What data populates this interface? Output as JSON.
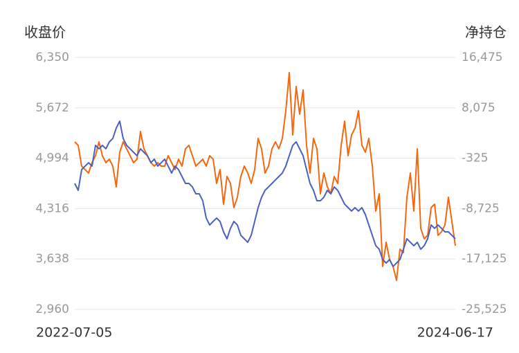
{
  "chart_data": {
    "type": "line",
    "ylabel": "收盘价",
    "y2label": "净持仓",
    "categories": [
      "2022-07-05",
      null,
      null,
      null,
      null,
      null,
      null,
      null,
      null,
      null,
      null,
      null,
      null,
      null,
      null,
      null,
      null,
      null,
      null,
      null,
      null,
      null,
      null,
      null,
      null,
      null,
      null,
      null,
      null,
      null,
      null,
      null,
      null,
      null,
      null,
      null,
      null,
      null,
      null,
      null,
      null,
      null,
      null,
      null,
      null,
      null,
      null,
      null,
      null,
      null,
      null,
      null,
      null,
      null,
      null,
      null,
      null,
      null,
      null,
      null,
      null,
      null,
      null,
      null,
      null,
      null,
      null,
      null,
      null,
      null,
      null,
      null,
      null,
      null,
      null,
      null,
      null,
      null,
      null,
      null,
      null,
      null,
      null,
      null,
      null,
      null,
      null,
      null,
      null,
      null,
      null,
      null,
      null,
      null,
      null,
      null,
      null,
      null,
      null,
      null,
      null,
      null,
      null,
      null,
      null,
      null,
      null,
      null,
      null,
      null,
      "2024-06-17"
    ],
    "ylim": [
      2960,
      6350
    ],
    "yticks": [
      {
        "value": 2960,
        "label": "2,960"
      },
      {
        "value": 3638,
        "label": "3,638"
      },
      {
        "value": 4316,
        "label": "4,316"
      },
      {
        "value": 4994,
        "label": "4,994"
      },
      {
        "value": 5672,
        "label": "5,672"
      },
      {
        "value": 6350,
        "label": "6,350"
      }
    ],
    "y2lim": [
      -25525,
      16475
    ],
    "y2ticks": [
      {
        "value": -25525,
        "label": "-25,525"
      },
      {
        "value": -17125,
        "label": "-17,125"
      },
      {
        "value": -8725,
        "label": "-8,725"
      },
      -325,
      {
        "value": 8075,
        "label": "8,075"
      },
      {
        "value": 16475,
        "label": "16,475"
      }
    ],
    "grid": true,
    "series": [
      {
        "color": "#4a5fc1",
        "axis": "y",
        "values": [
          4655,
          4562,
          4841,
          4888,
          4934,
          4888,
          5167,
          5121,
          5167,
          5121,
          5214,
          5260,
          5400,
          5493,
          5260,
          5167,
          5121,
          5074,
          5028,
          5121,
          5074,
          5028,
          4934,
          4981,
          4888,
          4934,
          4981,
          4888,
          4795,
          4888,
          4841,
          4748,
          4655,
          4655,
          4608,
          4515,
          4515,
          4422,
          4189,
          4096,
          4143,
          4189,
          4143,
          4003,
          3910,
          4050,
          4143,
          4096,
          3957,
          3910,
          3863,
          3957,
          4143,
          4329,
          4469,
          4562,
          4608,
          4655,
          4702,
          4748,
          4795,
          4888,
          5028,
          5167,
          5214,
          5121,
          5028,
          4841,
          4655,
          4562,
          4422,
          4422,
          4469,
          4562,
          4515,
          4608,
          4562,
          4469,
          4376,
          4329,
          4283,
          4329,
          4283,
          4329,
          4236,
          4096,
          3957,
          3817,
          3770,
          3631,
          3584,
          3631,
          3537,
          3584,
          3631,
          3770,
          3910,
          3863,
          3817,
          3863,
          3770,
          3817,
          3910,
          4096,
          4050,
          4096,
          4050,
          4003,
          4003,
          3957,
          3910
        ]
      },
      {
        "color": "#f5670f",
        "axis": "y2",
        "values": [
          2399,
          1822,
          -1640,
          -2217,
          -2793,
          -1063,
          91,
          2399,
          91,
          -1063,
          -486,
          -1640,
          -5101,
          668,
          2399,
          1245,
          91,
          -1063,
          -486,
          4129,
          1245,
          91,
          -1063,
          -1640,
          -1063,
          -1640,
          -1640,
          91,
          -1063,
          -2217,
          -486,
          -1640,
          1245,
          1822,
          91,
          -1640,
          -1063,
          -486,
          -1640,
          91,
          -486,
          -4524,
          -2217,
          -7986,
          -3370,
          -4524,
          -8562,
          -6832,
          -3370,
          -1640,
          -2793,
          -4524,
          -2217,
          2976,
          1245,
          -2793,
          -1640,
          1245,
          2399,
          1245,
          2976,
          7591,
          13937,
          3552,
          11629,
          7014,
          11052,
          1822,
          -2793,
          2976,
          1245,
          -6255,
          -2793,
          -5101,
          -6255,
          -3370,
          -4524,
          1822,
          5860,
          91,
          3552,
          4706,
          7591,
          1822,
          668,
          2976,
          -1640,
          -9139,
          -6255,
          -18370,
          -14331,
          -17216,
          -18370,
          -20677,
          -15485,
          -16062,
          -6832,
          -2793,
          -9139,
          1245,
          -12024,
          -13755,
          -13178,
          -8562,
          -7986,
          -13178,
          -12601,
          -11447,
          -6832,
          -10870,
          -14908
        ]
      }
    ]
  }
}
